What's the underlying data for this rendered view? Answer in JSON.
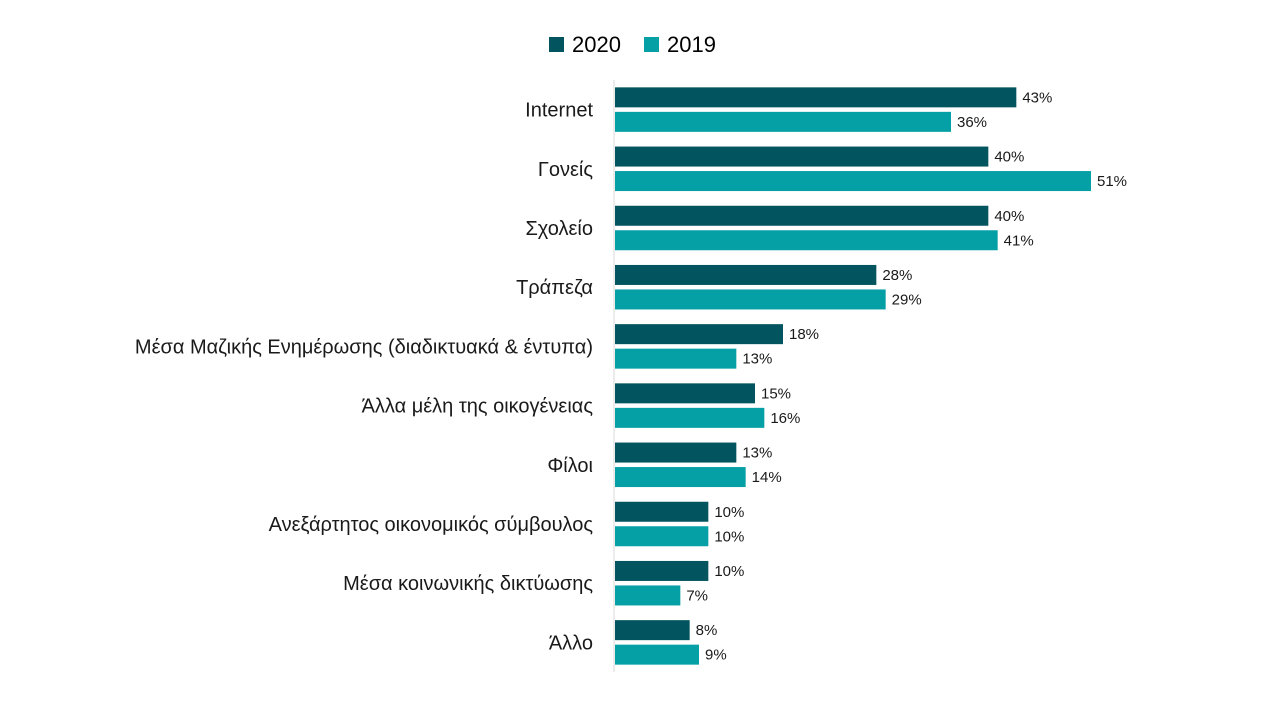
{
  "chart_data": {
    "type": "bar",
    "orientation": "horizontal",
    "categories": [
      "Internet",
      "Γονείς",
      "Σχολείο",
      "Τράπεζα",
      "Μέσα Μαζικής Ενημέρωσης (διαδικτυακά & έντυπα)",
      "Άλλα μέλη της οικογένειας",
      "Φίλοι",
      "Ανεξάρτητος οικονομικός σύμβουλος",
      "Μέσα κοινωνικής δικτύωσης",
      "Άλλο"
    ],
    "series": [
      {
        "name": "2020",
        "color": "#02545f",
        "values": [
          43,
          40,
          40,
          28,
          18,
          15,
          13,
          10,
          10,
          8
        ]
      },
      {
        "name": "2019",
        "color": "#05a0a5",
        "values": [
          36,
          51,
          41,
          29,
          13,
          16,
          14,
          10,
          7,
          9
        ]
      }
    ],
    "value_suffix": "%",
    "title": "",
    "xlabel": "",
    "ylabel": "",
    "xlim": [
      0,
      51
    ],
    "grid": false,
    "legend": {
      "position": "top"
    }
  }
}
